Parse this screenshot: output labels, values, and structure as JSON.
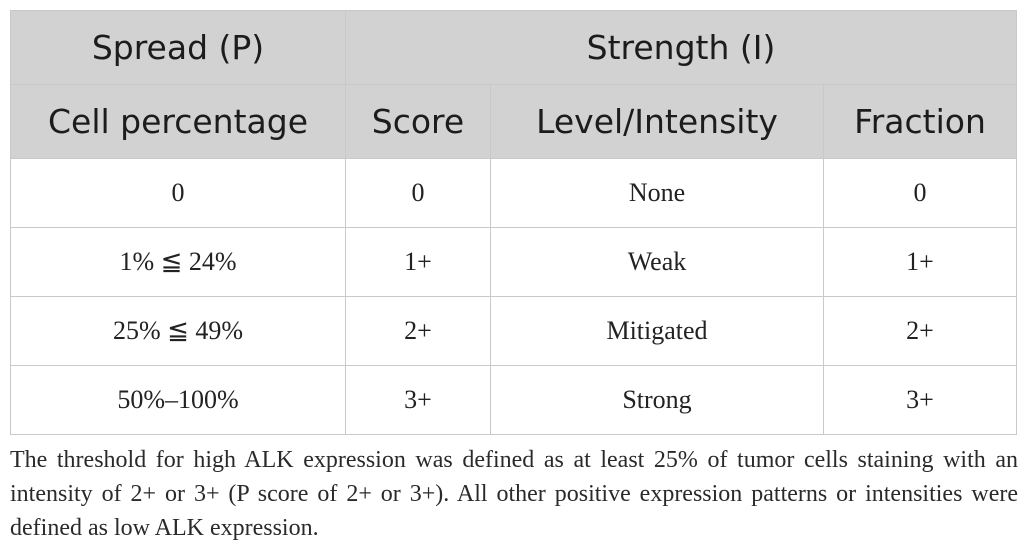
{
  "table": {
    "group_headers": [
      "Spread (P)",
      "Strength (I)"
    ],
    "columns": [
      "Cell percentage",
      "Score",
      "Level/Intensity",
      "Fraction"
    ],
    "rows": [
      [
        "0",
        "0",
        "None",
        "0"
      ],
      [
        "1% ≦ 24%",
        "1+",
        "Weak",
        "1+"
      ],
      [
        "25% ≦ 49%",
        "2+",
        "Mitigated",
        "2+"
      ],
      [
        "50%–100%",
        "3+",
        "Strong",
        "3+"
      ]
    ]
  },
  "footnote": "The threshold for high ALK expression was defined as at least 25% of tumor cells staining with an intensity of 2+ or 3+ (P score of 2+ or 3+). All other positive expression patterns or intensities were defined as low ALK expression."
}
